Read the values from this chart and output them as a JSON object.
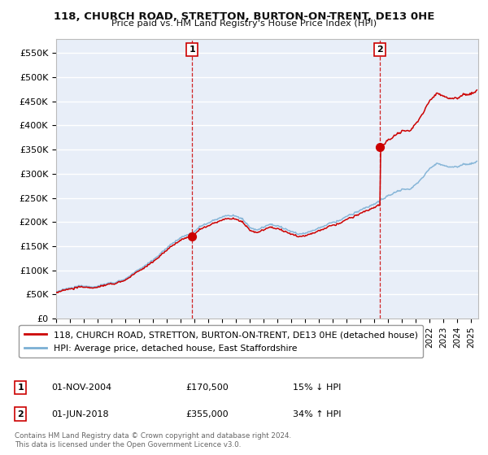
{
  "title": "118, CHURCH ROAD, STRETTON, BURTON-ON-TRENT, DE13 0HE",
  "subtitle": "Price paid vs. HM Land Registry's House Price Index (HPI)",
  "ylim": [
    0,
    580000
  ],
  "yticks": [
    0,
    50000,
    100000,
    150000,
    200000,
    250000,
    300000,
    350000,
    400000,
    450000,
    500000,
    550000
  ],
  "ytick_labels": [
    "£0",
    "£50K",
    "£100K",
    "£150K",
    "£200K",
    "£250K",
    "£300K",
    "£350K",
    "£400K",
    "£450K",
    "£500K",
    "£550K"
  ],
  "xlim_start": 1995.0,
  "xlim_end": 2025.5,
  "sale1_year": 2004.833,
  "sale1_price": 170500,
  "sale2_year": 2018.417,
  "sale2_price": 355000,
  "sale_color": "#cc0000",
  "hpi_color": "#7bafd4",
  "legend_label1": "118, CHURCH ROAD, STRETTON, BURTON-ON-TRENT, DE13 0HE (detached house)",
  "legend_label2": "HPI: Average price, detached house, East Staffordshire",
  "note1_label": "1",
  "note1_date": "01-NOV-2004",
  "note1_price": "£170,500",
  "note1_hpi": "15% ↓ HPI",
  "note2_label": "2",
  "note2_date": "01-JUN-2018",
  "note2_price": "£355,000",
  "note2_hpi": "34% ↑ HPI",
  "footer": "Contains HM Land Registry data © Crown copyright and database right 2024.\nThis data is licensed under the Open Government Licence v3.0.",
  "bg_color": "#ffffff",
  "plot_bg_color": "#e8eef8",
  "grid_color": "#ffffff",
  "vline_color": "#cc0000"
}
